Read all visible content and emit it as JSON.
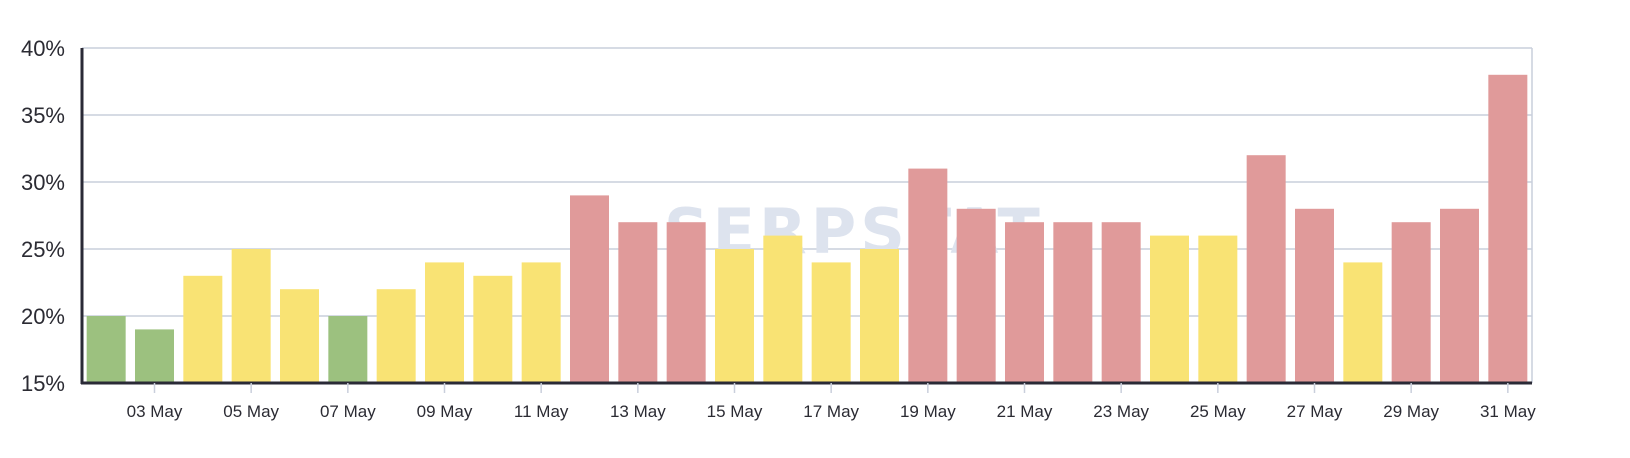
{
  "watermark": "SERPSTAT",
  "chart_data": {
    "type": "bar",
    "categories": [
      "02 May",
      "03 May",
      "04 May",
      "05 May",
      "06 May",
      "07 May",
      "08 May",
      "09 May",
      "10 May",
      "11 May",
      "12 May",
      "13 May",
      "14 May",
      "15 May",
      "16 May",
      "17 May",
      "18 May",
      "19 May",
      "20 May",
      "21 May",
      "22 May",
      "23 May",
      "24 May",
      "25 May",
      "26 May",
      "27 May",
      "28 May",
      "29 May",
      "30 May",
      "31 May"
    ],
    "values": [
      20,
      19,
      23,
      25,
      22,
      20,
      22,
      24,
      23,
      24,
      29,
      27,
      27,
      25,
      26,
      24,
      25,
      31,
      28,
      27,
      27,
      27,
      26,
      26,
      32,
      28,
      24,
      27,
      28,
      38
    ],
    "levels": [
      "low",
      "low",
      "mid",
      "mid",
      "mid",
      "low",
      "mid",
      "mid",
      "mid",
      "mid",
      "high",
      "high",
      "high",
      "mid",
      "mid",
      "mid",
      "mid",
      "high",
      "high",
      "high",
      "high",
      "high",
      "mid",
      "mid",
      "high",
      "high",
      "mid",
      "high",
      "high",
      "high"
    ],
    "level_colors": {
      "low": "#9cc17f",
      "mid": "#f9e374",
      "high": "#e09a9a"
    },
    "x_tick_labels": [
      "03 May",
      "05 May",
      "07 May",
      "09 May",
      "11 May",
      "13 May",
      "15 May",
      "17 May",
      "19 May",
      "21 May",
      "23 May",
      "25 May",
      "27 May",
      "29 May",
      "31 May"
    ],
    "y_ticks": [
      15,
      20,
      25,
      30,
      35,
      40
    ],
    "y_tick_labels": [
      "15%",
      "20%",
      "25%",
      "30%",
      "35%",
      "40%"
    ],
    "ylim": [
      15,
      40
    ],
    "grid": true,
    "title": "",
    "xlabel": "",
    "ylabel": ""
  }
}
